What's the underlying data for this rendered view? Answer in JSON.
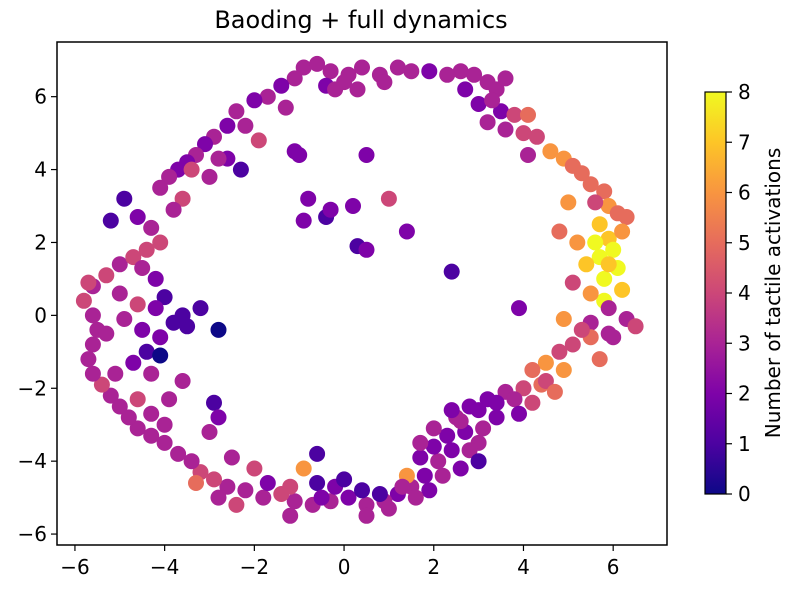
{
  "chart_data": {
    "type": "scatter",
    "title": "Baoding + full dynamics",
    "xlabel": "",
    "ylabel": "",
    "xlim": [
      -6.4,
      7.2
    ],
    "ylim": [
      -6.3,
      7.5
    ],
    "xticks": [
      -6,
      -4,
      -2,
      0,
      2,
      4,
      6
    ],
    "yticks": [
      -6,
      -4,
      -2,
      0,
      2,
      4,
      6
    ],
    "colorbar": {
      "label": "Number of tactile activations",
      "min": 0,
      "max": 8,
      "ticks": [
        0,
        1,
        2,
        3,
        4,
        5,
        6,
        7,
        8
      ],
      "colormap": "plasma"
    },
    "grid": false,
    "points": [
      [
        -0.9,
        6.8,
        3
      ],
      [
        -0.6,
        6.9,
        3
      ],
      [
        -0.3,
        6.7,
        3
      ],
      [
        0.1,
        6.6,
        3
      ],
      [
        0.4,
        6.8,
        3
      ],
      [
        0.8,
        6.6,
        3
      ],
      [
        1.2,
        6.8,
        3
      ],
      [
        1.5,
        6.7,
        3
      ],
      [
        1.9,
        6.7,
        2
      ],
      [
        -0.4,
        6.3,
        2
      ],
      [
        0.0,
        6.4,
        3
      ],
      [
        0.3,
        6.2,
        3
      ],
      [
        -1.1,
        6.5,
        3
      ],
      [
        -1.4,
        6.3,
        2
      ],
      [
        -1.7,
        6.0,
        3
      ],
      [
        -2.0,
        5.9,
        2
      ],
      [
        -2.4,
        5.6,
        3
      ],
      [
        -2.6,
        5.2,
        2
      ],
      [
        -2.9,
        4.9,
        3
      ],
      [
        -3.1,
        4.7,
        2
      ],
      [
        -3.3,
        4.4,
        3
      ],
      [
        -3.5,
        4.2,
        2
      ],
      [
        -3.7,
        4.0,
        2
      ],
      [
        -3.9,
        3.8,
        3
      ],
      [
        -4.1,
        3.5,
        3
      ],
      [
        -3.6,
        3.2,
        4
      ],
      [
        -3.8,
        2.9,
        3
      ],
      [
        -2.3,
        4.0,
        1
      ],
      [
        -1.9,
        4.8,
        4
      ],
      [
        -2.6,
        4.3,
        2
      ],
      [
        -1.1,
        4.5,
        2
      ],
      [
        -2.2,
        5.2,
        3
      ],
      [
        2.6,
        6.7,
        3
      ],
      [
        2.9,
        6.6,
        3
      ],
      [
        3.2,
        6.4,
        3
      ],
      [
        2.7,
        6.2,
        2
      ],
      [
        3.4,
        6.2,
        3
      ],
      [
        3.0,
        5.8,
        2
      ],
      [
        3.5,
        5.6,
        2
      ],
      [
        3.2,
        5.3,
        3
      ],
      [
        3.8,
        5.5,
        4
      ],
      [
        3.6,
        5.1,
        3
      ],
      [
        4.0,
        5.0,
        4
      ],
      [
        4.3,
        4.9,
        4
      ],
      [
        4.1,
        4.4,
        3
      ],
      [
        4.6,
        4.5,
        6
      ],
      [
        4.9,
        4.3,
        6
      ],
      [
        5.1,
        4.1,
        5
      ],
      [
        5.3,
        3.9,
        5
      ],
      [
        5.5,
        3.6,
        5
      ],
      [
        5.8,
        3.4,
        5
      ],
      [
        5.9,
        3.0,
        6
      ],
      [
        6.1,
        2.8,
        5
      ],
      [
        6.3,
        2.7,
        5
      ],
      [
        5.7,
        2.5,
        7
      ],
      [
        5.9,
        2.1,
        7
      ],
      [
        6.0,
        1.8,
        8
      ],
      [
        5.7,
        1.6,
        8
      ],
      [
        6.1,
        1.3,
        8
      ],
      [
        5.8,
        1.0,
        8
      ],
      [
        6.2,
        0.7,
        7
      ],
      [
        5.8,
        0.4,
        8
      ],
      [
        5.5,
        0.6,
        6
      ],
      [
        5.9,
        0.2,
        3
      ],
      [
        5.5,
        -0.2,
        3
      ],
      [
        6.3,
        -0.1,
        3
      ],
      [
        6.5,
        -0.3,
        4
      ],
      [
        5.9,
        -0.5,
        3
      ],
      [
        5.5,
        -0.6,
        5
      ],
      [
        5.1,
        -0.8,
        4
      ],
      [
        4.8,
        -1.0,
        4
      ],
      [
        4.5,
        -1.3,
        6
      ],
      [
        4.2,
        -1.5,
        5
      ],
      [
        4.4,
        -1.9,
        5
      ],
      [
        4.0,
        -2.0,
        4
      ],
      [
        3.6,
        -2.1,
        3
      ],
      [
        3.2,
        -2.3,
        2
      ],
      [
        2.8,
        -2.5,
        2
      ],
      [
        2.5,
        -2.8,
        3
      ],
      [
        2.7,
        -3.2,
        2
      ],
      [
        3.0,
        -3.5,
        3
      ],
      [
        2.4,
        -3.7,
        2
      ],
      [
        2.1,
        -4.0,
        3
      ],
      [
        1.8,
        -4.4,
        2
      ],
      [
        1.5,
        -4.7,
        3
      ],
      [
        1.2,
        -4.9,
        2
      ],
      [
        0.9,
        -5.1,
        3
      ],
      [
        0.5,
        -5.2,
        3
      ],
      [
        0.1,
        -5.0,
        2
      ],
      [
        -0.3,
        -5.1,
        3
      ],
      [
        -0.7,
        -5.2,
        3
      ],
      [
        -1.1,
        -5.1,
        3
      ],
      [
        -1.4,
        -4.9,
        4
      ],
      [
        -1.8,
        -5.0,
        3
      ],
      [
        -2.2,
        -4.8,
        3
      ],
      [
        -2.6,
        -4.7,
        3
      ],
      [
        -2.9,
        -4.5,
        4
      ],
      [
        -3.2,
        -4.3,
        4
      ],
      [
        -3.4,
        -4.0,
        3
      ],
      [
        -3.7,
        -3.8,
        3
      ],
      [
        -4.0,
        -3.5,
        3
      ],
      [
        -4.3,
        -3.3,
        3
      ],
      [
        -4.6,
        -3.1,
        3
      ],
      [
        -4.8,
        -2.8,
        3
      ],
      [
        -5.0,
        -2.5,
        3
      ],
      [
        -5.2,
        -2.2,
        3
      ],
      [
        -5.4,
        -1.9,
        4
      ],
      [
        -5.6,
        -1.6,
        3
      ],
      [
        -5.7,
        -1.2,
        3
      ],
      [
        -5.6,
        -0.8,
        3
      ],
      [
        -5.5,
        -0.4,
        3
      ],
      [
        -5.6,
        0.0,
        3
      ],
      [
        -5.8,
        0.4,
        4
      ],
      [
        -5.6,
        0.8,
        3
      ],
      [
        -5.3,
        1.1,
        4
      ],
      [
        -5.0,
        1.4,
        3
      ],
      [
        -4.7,
        1.6,
        4
      ],
      [
        -4.4,
        1.8,
        4
      ],
      [
        -4.1,
        2.0,
        4
      ],
      [
        -4.3,
        2.4,
        3
      ],
      [
        -4.6,
        2.7,
        2
      ],
      [
        -4.9,
        3.2,
        1
      ],
      [
        -5.2,
        2.6,
        1
      ],
      [
        -4.5,
        1.3,
        3
      ],
      [
        -4.2,
        1.0,
        2
      ],
      [
        -4.0,
        0.5,
        1
      ],
      [
        -4.2,
        0.2,
        2
      ],
      [
        -3.8,
        -0.2,
        1
      ],
      [
        -3.5,
        -0.3,
        1
      ],
      [
        -4.1,
        -0.6,
        2
      ],
      [
        -4.4,
        -1.0,
        1
      ],
      [
        -4.1,
        -1.1,
        0
      ],
      [
        -4.7,
        -1.3,
        2
      ],
      [
        -4.3,
        -1.6,
        3
      ],
      [
        -3.2,
        0.2,
        1
      ],
      [
        -3.6,
        0.0,
        1
      ],
      [
        -2.8,
        -0.4,
        0
      ],
      [
        -2.9,
        -2.4,
        1
      ],
      [
        -2.8,
        -2.8,
        2
      ],
      [
        -3.0,
        -3.2,
        3
      ],
      [
        -2.5,
        -3.9,
        3
      ],
      [
        -2.0,
        -4.2,
        4
      ],
      [
        -1.7,
        -4.6,
        2
      ],
      [
        -1.2,
        -4.7,
        4
      ],
      [
        -0.6,
        -4.6,
        1
      ],
      [
        -0.2,
        -4.7,
        2
      ],
      [
        0.4,
        -4.8,
        1
      ],
      [
        0.8,
        -4.9,
        1
      ],
      [
        1.0,
        -5.3,
        3
      ],
      [
        0.5,
        -5.5,
        3
      ],
      [
        1.4,
        -4.4,
        6
      ],
      [
        1.7,
        -3.9,
        2
      ],
      [
        2.0,
        -3.6,
        2
      ],
      [
        2.3,
        -3.3,
        2
      ],
      [
        2.6,
        -2.9,
        3
      ],
      [
        3.0,
        -2.6,
        2
      ],
      [
        3.4,
        -2.4,
        2
      ],
      [
        3.8,
        -2.3,
        3
      ],
      [
        4.2,
        -2.4,
        4
      ],
      [
        3.9,
        -2.7,
        2
      ],
      [
        3.4,
        -2.8,
        2
      ],
      [
        3.1,
        -3.1,
        3
      ],
      [
        2.8,
        -3.7,
        3
      ],
      [
        3.0,
        -4.0,
        1
      ],
      [
        2.6,
        -4.2,
        2
      ],
      [
        2.2,
        -4.4,
        3
      ],
      [
        1.9,
        -4.8,
        2
      ],
      [
        1.6,
        -5.0,
        3
      ],
      [
        -0.9,
        -4.2,
        6
      ],
      [
        -0.6,
        -3.8,
        1
      ],
      [
        -1.0,
        4.4,
        2
      ],
      [
        0.5,
        4.4,
        2
      ],
      [
        -0.8,
        3.2,
        2
      ],
      [
        -0.4,
        2.7,
        1
      ],
      [
        -0.3,
        2.9,
        2
      ],
      [
        0.2,
        3.0,
        2
      ],
      [
        1.0,
        3.2,
        4
      ],
      [
        -0.9,
        2.6,
        2
      ],
      [
        0.3,
        1.9,
        1
      ],
      [
        0.5,
        1.8,
        2
      ],
      [
        1.4,
        2.3,
        2
      ],
      [
        2.4,
        1.2,
        1
      ],
      [
        3.9,
        0.2,
        2
      ],
      [
        5.0,
        3.1,
        6
      ],
      [
        4.8,
        2.3,
        5
      ],
      [
        5.2,
        2.0,
        6
      ],
      [
        5.4,
        1.4,
        7
      ],
      [
        5.1,
        0.9,
        4
      ],
      [
        4.9,
        -0.1,
        6
      ],
      [
        5.3,
        -0.4,
        4
      ],
      [
        6.0,
        -0.6,
        3
      ],
      [
        5.7,
        -1.2,
        5
      ],
      [
        4.9,
        -1.5,
        6
      ],
      [
        4.5,
        -1.8,
        4
      ],
      [
        4.7,
        -2.1,
        5
      ],
      [
        -1.2,
        -5.5,
        3
      ],
      [
        -2.4,
        -5.2,
        4
      ],
      [
        -2.8,
        -5.0,
        3
      ],
      [
        -3.3,
        -4.6,
        5
      ],
      [
        -4.0,
        -3.0,
        3
      ],
      [
        -4.6,
        -2.3,
        4
      ],
      [
        -5.1,
        -1.6,
        3
      ],
      [
        -5.3,
        -0.5,
        3
      ],
      [
        -5.7,
        0.9,
        4
      ],
      [
        -5.0,
        0.6,
        3
      ],
      [
        -3.4,
        4.0,
        4
      ],
      [
        -3.0,
        3.8,
        3
      ],
      [
        -2.8,
        4.3,
        3
      ],
      [
        -1.3,
        5.7,
        3
      ],
      [
        -0.2,
        6.2,
        3
      ],
      [
        0.9,
        6.4,
        3
      ],
      [
        2.3,
        6.6,
        3
      ],
      [
        3.6,
        6.5,
        3
      ],
      [
        4.1,
        5.5,
        5
      ],
      [
        3.3,
        5.9,
        3
      ],
      [
        5.6,
        3.1,
        4
      ],
      [
        6.2,
        2.3,
        6
      ],
      [
        5.9,
        1.4,
        7
      ],
      [
        5.6,
        2.0,
        8
      ],
      [
        2.4,
        -2.6,
        2
      ],
      [
        2.0,
        -3.1,
        3
      ],
      [
        1.7,
        -3.5,
        3
      ],
      [
        1.3,
        -4.7,
        3
      ],
      [
        0.0,
        -4.5,
        1
      ],
      [
        -0.5,
        -5.0,
        2
      ],
      [
        -3.6,
        -1.8,
        3
      ],
      [
        -3.9,
        -2.3,
        3
      ],
      [
        -4.3,
        -2.7,
        3
      ],
      [
        -4.5,
        -0.4,
        2
      ],
      [
        -4.9,
        -0.1,
        3
      ],
      [
        -4.6,
        0.3,
        4
      ]
    ]
  }
}
